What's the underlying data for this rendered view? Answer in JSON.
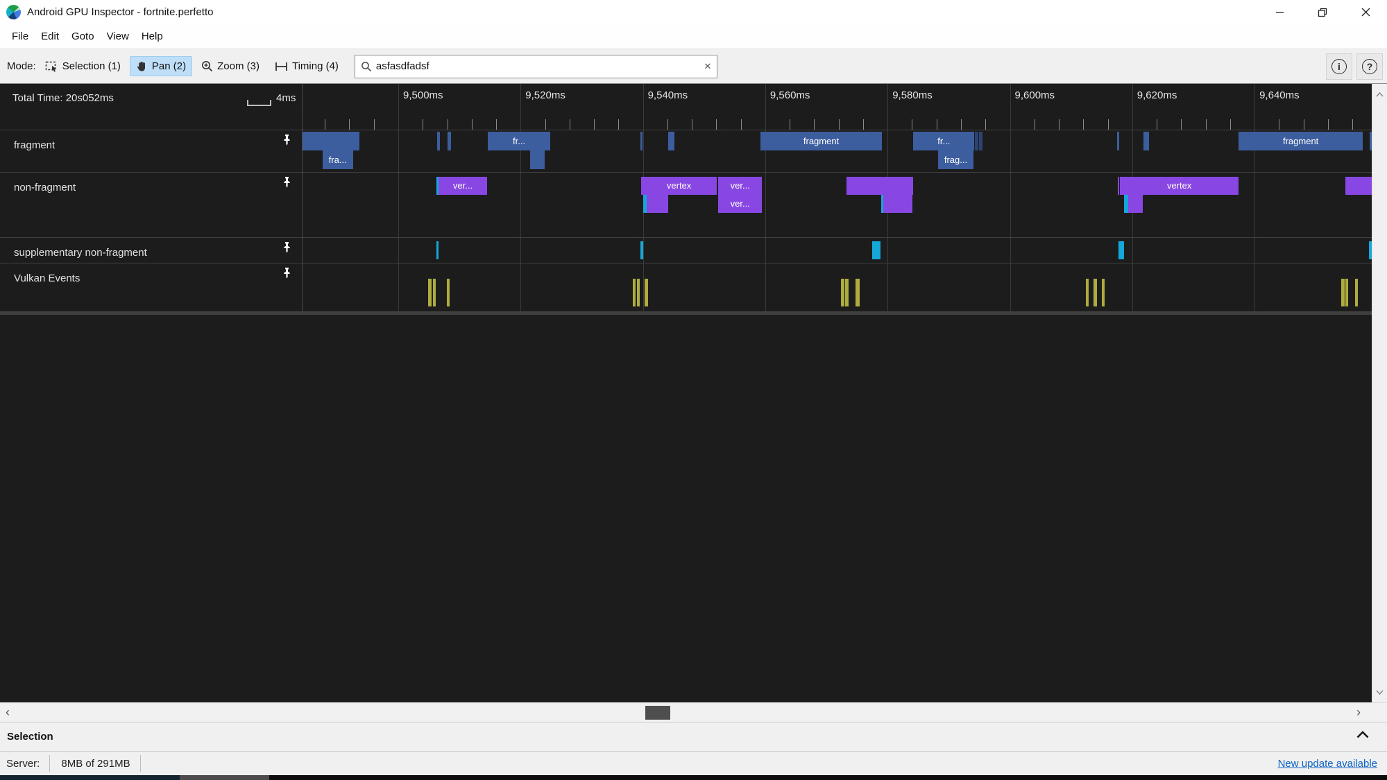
{
  "window": {
    "title": "Android GPU Inspector - fortnite.perfetto",
    "controls": {
      "minimize": "minimize",
      "maximize": "restore",
      "close": "close"
    }
  },
  "menu": {
    "items": [
      "File",
      "Edit",
      "Goto",
      "View",
      "Help"
    ]
  },
  "toolbar": {
    "mode_label": "Mode:",
    "modes": [
      {
        "label": "Selection (1)",
        "icon": "selection-icon",
        "active": false
      },
      {
        "label": "Pan (2)",
        "icon": "pan-icon",
        "active": true
      },
      {
        "label": "Zoom (3)",
        "icon": "zoom-icon",
        "active": false
      },
      {
        "label": "Timing (4)",
        "icon": "timing-icon",
        "active": false
      }
    ],
    "search": {
      "value": "asfasdfadsf",
      "clear_glyph": "✕"
    }
  },
  "timeline": {
    "total_time_label": "Total Time: 20s052ms",
    "scale_label": "4ms",
    "ruler_ticks": [
      {
        "ms": 9500,
        "label": "9,500ms"
      },
      {
        "ms": 9520,
        "label": "9,520ms"
      },
      {
        "ms": 9540,
        "label": "9,540ms"
      },
      {
        "ms": 9560,
        "label": "9,560ms"
      },
      {
        "ms": 9580,
        "label": "9,580ms"
      },
      {
        "ms": 9600,
        "label": "9,600ms"
      },
      {
        "ms": 9620,
        "label": "9,620ms"
      },
      {
        "ms": 9640,
        "label": "9,640ms"
      }
    ],
    "minor_tick_ms": 4,
    "view": {
      "start_ms": 9484.3,
      "end_ms": 9659.2
    },
    "colors": {
      "blue": "#3d5e9e",
      "darkblue": "#2d4472",
      "purple": "#8847e2",
      "cyan": "#16a7d9",
      "olive": "#aeac3e"
    },
    "tracks": [
      {
        "name": "fragment",
        "slices": [
          {
            "t0": 9483.0,
            "t1": 9493.6,
            "d": 0,
            "c": "blue"
          },
          {
            "t0": 9487.6,
            "t1": 9492.6,
            "d": 1,
            "c": "blue",
            "label": "fra..."
          },
          {
            "t0": 9506.4,
            "t1": 9506.8,
            "d": 0,
            "c": "blue"
          },
          {
            "t0": 9508.0,
            "t1": 9508.6,
            "d": 0,
            "c": "blue"
          },
          {
            "t0": 9514.6,
            "t1": 9524.9,
            "d": 0,
            "c": "blue",
            "label": "fr..."
          },
          {
            "t0": 9521.5,
            "t1": 9523.9,
            "d": 1,
            "c": "blue"
          },
          {
            "t0": 9539.6,
            "t1": 9539.9,
            "d": 0,
            "c": "blue"
          },
          {
            "t0": 9544.1,
            "t1": 9545.1,
            "d": 0,
            "c": "blue"
          },
          {
            "t0": 9559.2,
            "t1": 9579.1,
            "d": 0,
            "c": "blue",
            "label": "fragment"
          },
          {
            "t0": 9584.2,
            "t1": 9594.2,
            "d": 0,
            "c": "blue",
            "label": "fr..."
          },
          {
            "t0": 9588.3,
            "t1": 9594.0,
            "d": 1,
            "c": "blue",
            "label": "frag..."
          },
          {
            "t0": 9594.3,
            "t1": 9594.8,
            "d": 0,
            "c": "darkblue"
          },
          {
            "t0": 9595.0,
            "t1": 9595.5,
            "d": 0,
            "c": "darkblue"
          },
          {
            "t0": 9617.5,
            "t1": 9617.9,
            "d": 0,
            "c": "blue"
          },
          {
            "t0": 9621.8,
            "t1": 9622.8,
            "d": 0,
            "c": "blue"
          },
          {
            "t0": 9637.4,
            "t1": 9657.7,
            "d": 0,
            "c": "blue",
            "label": "fragment"
          },
          {
            "t0": 9658.8,
            "t1": 9660.5,
            "d": 0,
            "c": "blue"
          }
        ]
      },
      {
        "name": "non-fragment",
        "slices": [
          {
            "t0": 9506.2,
            "t1": 9506.6,
            "d": 0,
            "c": "cyan"
          },
          {
            "t0": 9506.6,
            "t1": 9514.5,
            "d": 0,
            "c": "purple",
            "label": "ver..."
          },
          {
            "t0": 9539.7,
            "t1": 9552.1,
            "d": 0,
            "c": "purple",
            "label": "vertex"
          },
          {
            "t0": 9540.0,
            "t1": 9540.6,
            "d": 1,
            "c": "cyan"
          },
          {
            "t0": 9540.6,
            "t1": 9544.1,
            "d": 1,
            "c": "purple"
          },
          {
            "t0": 9552.3,
            "t1": 9559.5,
            "d": 0,
            "c": "purple",
            "label": "ver..."
          },
          {
            "t0": 9552.3,
            "t1": 9559.5,
            "d": 1,
            "c": "purple",
            "label": "ver..."
          },
          {
            "t0": 9573.3,
            "t1": 9584.2,
            "d": 0,
            "c": "purple"
          },
          {
            "t0": 9578.9,
            "t1": 9579.3,
            "d": 1,
            "c": "cyan"
          },
          {
            "t0": 9579.3,
            "t1": 9584.1,
            "d": 1,
            "c": "purple"
          },
          {
            "t0": 9617.6,
            "t1": 9617.9,
            "d": 0,
            "c": "purple"
          },
          {
            "t0": 9618.0,
            "t1": 9637.4,
            "d": 0,
            "c": "purple",
            "label": "vertex"
          },
          {
            "t0": 9618.7,
            "t1": 9619.3,
            "d": 1,
            "c": "cyan"
          },
          {
            "t0": 9619.3,
            "t1": 9621.7,
            "d": 1,
            "c": "purple"
          },
          {
            "t0": 9654.9,
            "t1": 9660.5,
            "d": 0,
            "c": "purple"
          }
        ]
      },
      {
        "name": "supplementary non-fragment",
        "slices": [
          {
            "t0": 9506.2,
            "t1": 9506.6,
            "d": 0,
            "c": "cyan"
          },
          {
            "t0": 9539.6,
            "t1": 9540.0,
            "d": 0,
            "c": "cyan"
          },
          {
            "t0": 9577.5,
            "t1": 9578.9,
            "d": 0,
            "c": "cyan"
          },
          {
            "t0": 9617.8,
            "t1": 9618.7,
            "d": 0,
            "c": "cyan"
          },
          {
            "t0": 9658.7,
            "t1": 9660.5,
            "d": 0,
            "c": "cyan"
          }
        ]
      },
      {
        "name": "Vulkan Events",
        "slices": [
          {
            "t0": 9504.9,
            "t1": 9505.4,
            "d": 0,
            "c": "olive"
          },
          {
            "t0": 9505.7,
            "t1": 9506.1,
            "d": 0,
            "c": "olive"
          },
          {
            "t0": 9507.9,
            "t1": 9508.4,
            "d": 0,
            "c": "olive"
          },
          {
            "t0": 9538.3,
            "t1": 9538.8,
            "d": 0,
            "c": "olive"
          },
          {
            "t0": 9539.0,
            "t1": 9539.5,
            "d": 0,
            "c": "olive"
          },
          {
            "t0": 9540.3,
            "t1": 9540.8,
            "d": 0,
            "c": "olive"
          },
          {
            "t0": 9572.4,
            "t1": 9572.9,
            "d": 0,
            "c": "olive"
          },
          {
            "t0": 9573.1,
            "t1": 9573.6,
            "d": 0,
            "c": "olive"
          },
          {
            "t0": 9574.8,
            "t1": 9575.4,
            "d": 0,
            "c": "olive"
          },
          {
            "t0": 9612.4,
            "t1": 9612.9,
            "d": 0,
            "c": "olive"
          },
          {
            "t0": 9613.7,
            "t1": 9614.2,
            "d": 0,
            "c": "olive"
          },
          {
            "t0": 9615.0,
            "t1": 9615.5,
            "d": 0,
            "c": "olive"
          },
          {
            "t0": 9654.2,
            "t1": 9654.7,
            "d": 0,
            "c": "olive"
          },
          {
            "t0": 9654.9,
            "t1": 9655.3,
            "d": 0,
            "c": "olive"
          },
          {
            "t0": 9656.4,
            "t1": 9656.9,
            "d": 0,
            "c": "olive"
          }
        ]
      }
    ]
  },
  "bottom": {
    "selection_title": "Selection"
  },
  "statusbar": {
    "server_label": "Server:",
    "server_value": "8MB of 291MB",
    "update_link": "New update available"
  }
}
